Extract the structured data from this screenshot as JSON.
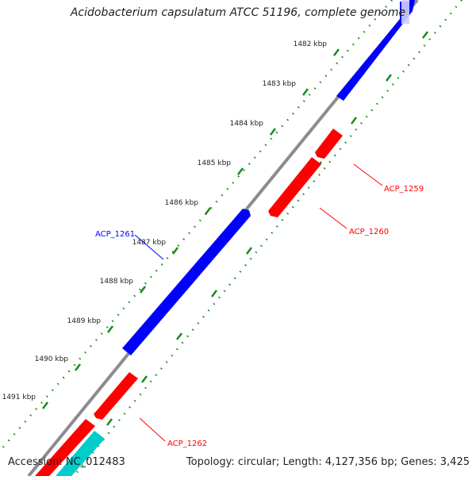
{
  "title": "Acidobacterium capsulatum ATCC 51196, complete genome",
  "footer": {
    "accession": "Accession: NC_012483",
    "summary": "Topology: circular; Length: 4,127,356 bp; Genes: 3,425"
  },
  "colors": {
    "backbone": "#8c8c8c",
    "forward_gene": "#0000ff",
    "reverse_gene": "#ff0000",
    "other_gene": "#00cccc",
    "ticks": "#1a8a1a"
  },
  "ticks": [
    {
      "label": "1482 kbp"
    },
    {
      "label": "1483 kbp"
    },
    {
      "label": "1484 kbp"
    },
    {
      "label": "1485 kbp"
    },
    {
      "label": "1486 kbp"
    },
    {
      "label": "1487 kbp"
    },
    {
      "label": "1488 kbp"
    },
    {
      "label": "1489 kbp"
    },
    {
      "label": "1490 kbp"
    },
    {
      "label": "1491 kbp"
    }
  ],
  "genes": [
    {
      "label": "ACP_1259",
      "strand": "reverse"
    },
    {
      "label": "ACP_1260",
      "strand": "reverse"
    },
    {
      "label": "ACP_1261",
      "strand": "forward"
    },
    {
      "label": "ACP_1262",
      "strand": "reverse"
    }
  ]
}
